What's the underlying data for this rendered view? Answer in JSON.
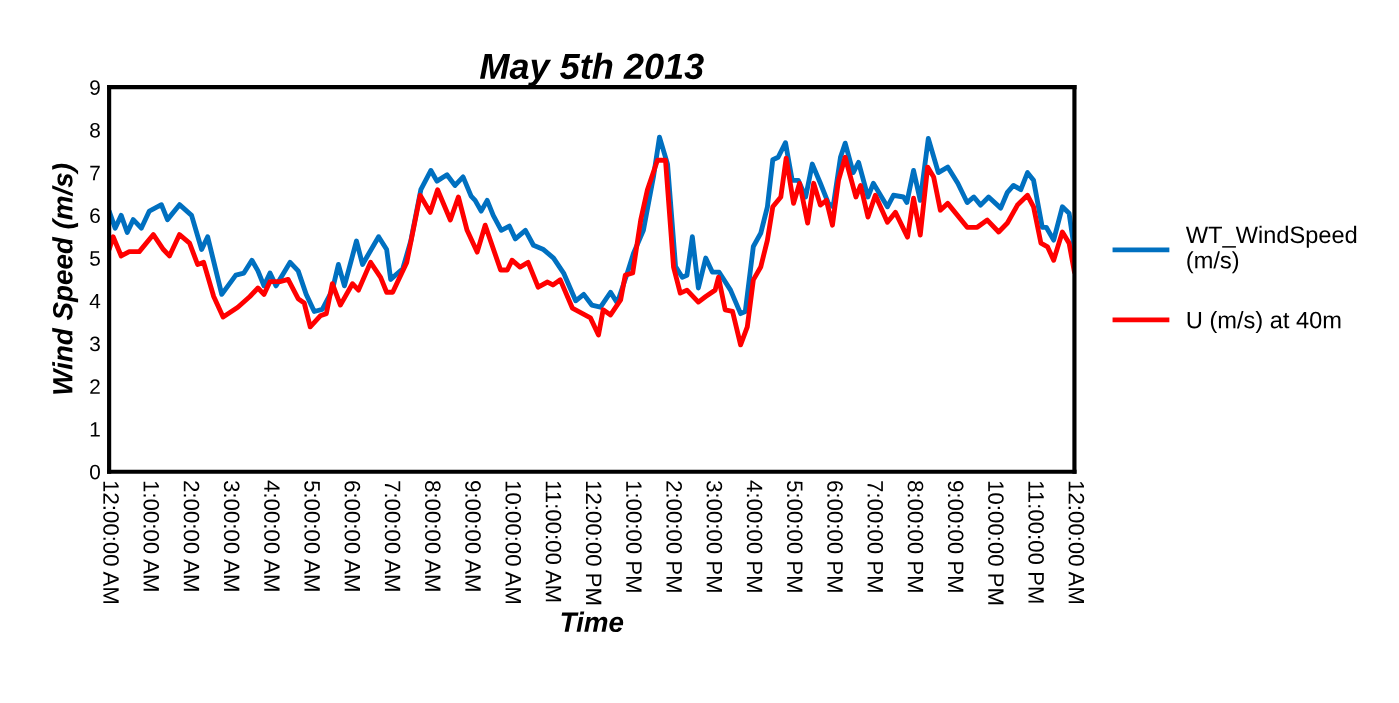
{
  "chart_data": {
    "type": "line",
    "title": "May 5th 2013",
    "xlabel": "Time",
    "ylabel": "Wind Speed (m/s)",
    "xlim": [
      "2013-05-05T00:00",
      "2013-05-06T00:00"
    ],
    "xticks": [
      {
        "value": "2013-05-05T00:00",
        "label": "12:00:00 AM"
      },
      {
        "value": "2013-05-05T01:00",
        "label": "1:00:00 AM"
      },
      {
        "value": "2013-05-05T02:00",
        "label": "2:00:00 AM"
      },
      {
        "value": "2013-05-05T03:00",
        "label": "3:00:00 AM"
      },
      {
        "value": "2013-05-05T04:00",
        "label": "4:00:00 AM"
      },
      {
        "value": "2013-05-05T05:00",
        "label": "5:00:00 AM"
      },
      {
        "value": "2013-05-05T06:00",
        "label": "6:00:00 AM"
      },
      {
        "value": "2013-05-05T07:00",
        "label": "7:00:00 AM"
      },
      {
        "value": "2013-05-05T08:00",
        "label": "8:00:00 AM"
      },
      {
        "value": "2013-05-05T09:00",
        "label": "9:00:00 AM"
      },
      {
        "value": "2013-05-05T10:00",
        "label": "10:00:00 AM"
      },
      {
        "value": "2013-05-05T11:00",
        "label": "11:00:00 AM"
      },
      {
        "value": "2013-05-05T12:00",
        "label": "12:00:00 PM"
      },
      {
        "value": "2013-05-05T13:00",
        "label": "1:00:00 PM"
      },
      {
        "value": "2013-05-05T14:00",
        "label": "2:00:00 PM"
      },
      {
        "value": "2013-05-05T15:00",
        "label": "3:00:00 PM"
      },
      {
        "value": "2013-05-05T16:00",
        "label": "4:00:00 PM"
      },
      {
        "value": "2013-05-05T17:00",
        "label": "5:00:00 PM"
      },
      {
        "value": "2013-05-05T18:00",
        "label": "6:00:00 PM"
      },
      {
        "value": "2013-05-05T19:00",
        "label": "7:00:00 PM"
      },
      {
        "value": "2013-05-05T20:00",
        "label": "8:00:00 PM"
      },
      {
        "value": "2013-05-05T21:00",
        "label": "9:00:00 PM"
      },
      {
        "value": "2013-05-05T22:00",
        "label": "10:00:00 PM"
      },
      {
        "value": "2013-05-05T23:00",
        "label": "11:00:00 PM"
      },
      {
        "value": "2013-05-06T00:00",
        "label": "12:00:00 AM"
      }
    ],
    "ylim": [
      0,
      9
    ],
    "yticks": [
      0,
      1,
      2,
      3,
      4,
      5,
      6,
      7,
      8,
      9
    ],
    "grid": false,
    "legend": "right",
    "marker": "none",
    "line_style": "solid",
    "series": [
      {
        "name": "WT_WindSpeed\n(m/s)",
        "color": "#0070c0",
        "x": [
          "2013-05-05T00:00",
          "2013-05-05T00:09",
          "2013-05-05T00:18",
          "2013-05-05T00:27",
          "2013-05-05T00:36",
          "2013-05-05T00:48",
          "2013-05-05T01:00",
          "2013-05-05T01:18",
          "2013-05-05T01:27",
          "2013-05-05T01:45",
          "2013-05-05T02:03",
          "2013-05-05T02:18",
          "2013-05-05T02:27",
          "2013-05-05T02:48",
          "2013-05-05T03:09",
          "2013-05-05T03:21",
          "2013-05-05T03:33",
          "2013-05-05T03:42",
          "2013-05-05T03:51",
          "2013-05-05T04:00",
          "2013-05-05T04:09",
          "2013-05-05T04:30",
          "2013-05-05T04:42",
          "2013-05-05T04:54",
          "2013-05-05T05:06",
          "2013-05-05T05:18",
          "2013-05-05T05:33",
          "2013-05-05T05:42",
          "2013-05-05T05:51",
          "2013-05-05T06:09",
          "2013-05-05T06:18",
          "2013-05-05T06:42",
          "2013-05-05T06:54",
          "2013-05-05T07:00",
          "2013-05-05T07:18",
          "2013-05-05T07:30",
          "2013-05-05T07:45",
          "2013-05-05T08:00",
          "2013-05-05T08:09",
          "2013-05-05T08:24",
          "2013-05-05T08:36",
          "2013-05-05T08:48",
          "2013-05-05T09:00",
          "2013-05-05T09:06",
          "2013-05-05T09:15",
          "2013-05-05T09:24",
          "2013-05-05T09:33",
          "2013-05-05T09:45",
          "2013-05-05T09:57",
          "2013-05-05T10:06",
          "2013-05-05T10:21",
          "2013-05-05T10:33",
          "2013-05-05T10:48",
          "2013-05-05T11:03",
          "2013-05-05T11:18",
          "2013-05-05T11:36",
          "2013-05-05T11:48",
          "2013-05-05T12:00",
          "2013-05-05T12:13",
          "2013-05-05T12:28",
          "2013-05-05T12:38",
          "2013-05-05T12:53",
          "2013-05-05T13:02",
          "2013-05-05T13:17",
          "2013-05-05T13:32",
          "2013-05-05T13:41",
          "2013-05-05T13:53",
          "2013-05-05T14:05",
          "2013-05-05T14:15",
          "2013-05-05T14:22",
          "2013-05-05T14:30",
          "2013-05-05T14:39",
          "2013-05-05T14:50",
          "2013-05-05T15:00",
          "2013-05-05T15:10",
          "2013-05-05T15:27",
          "2013-05-05T15:42",
          "2013-05-05T15:49",
          "2013-05-05T16:01",
          "2013-05-05T16:12",
          "2013-05-05T16:22",
          "2013-05-05T16:30",
          "2013-05-05T16:38",
          "2013-05-05T16:49",
          "2013-05-05T16:59",
          "2013-05-05T17:08",
          "2013-05-05T17:19",
          "2013-05-05T17:29",
          "2013-05-05T17:41",
          "2013-05-05T17:53",
          "2013-05-05T18:00",
          "2013-05-05T18:11",
          "2013-05-05T18:18",
          "2013-05-05T18:30",
          "2013-05-05T18:38",
          "2013-05-05T18:52",
          "2013-05-05T19:00",
          "2013-05-05T19:21",
          "2013-05-05T19:30",
          "2013-05-05T19:45",
          "2013-05-05T19:50",
          "2013-05-05T20:00",
          "2013-05-05T20:10",
          "2013-05-05T20:22",
          "2013-05-05T20:37",
          "2013-05-05T20:51",
          "2013-05-05T21:06",
          "2013-05-05T21:20",
          "2013-05-05T21:30",
          "2013-05-05T21:40",
          "2013-05-05T21:52",
          "2013-05-05T22:10",
          "2013-05-05T22:20",
          "2013-05-05T22:29",
          "2013-05-05T22:40",
          "2013-05-05T22:50",
          "2013-05-05T22:59",
          "2013-05-05T23:12",
          "2013-05-05T23:18",
          "2013-05-05T23:29",
          "2013-05-05T23:42",
          "2013-05-05T23:52",
          "2013-05-06T00:00"
        ],
        "values": [
          6.1,
          5.7,
          6.0,
          5.6,
          5.9,
          5.7,
          6.1,
          6.25,
          5.9,
          6.25,
          6.0,
          5.2,
          5.5,
          4.15,
          4.6,
          4.65,
          4.95,
          4.7,
          4.35,
          4.65,
          4.35,
          4.9,
          4.7,
          4.15,
          3.75,
          3.8,
          4.25,
          4.85,
          4.35,
          5.4,
          4.85,
          5.5,
          5.2,
          4.5,
          4.75,
          5.4,
          6.6,
          7.05,
          6.8,
          6.95,
          6.7,
          6.9,
          6.45,
          6.35,
          6.1,
          6.35,
          6.0,
          5.65,
          5.75,
          5.45,
          5.65,
          5.3,
          5.2,
          5.0,
          4.65,
          4.0,
          4.15,
          3.9,
          3.85,
          4.2,
          3.95,
          4.65,
          5.1,
          5.65,
          6.9,
          7.83,
          7.2,
          4.8,
          4.55,
          4.6,
          5.5,
          4.3,
          5.0,
          4.67,
          4.67,
          4.25,
          3.7,
          3.75,
          5.27,
          5.58,
          6.2,
          7.3,
          7.36,
          7.7,
          6.82,
          6.82,
          6.43,
          7.2,
          6.75,
          6.28,
          6.2,
          7.36,
          7.69,
          7.0,
          7.24,
          6.43,
          6.75,
          6.2,
          6.47,
          6.43,
          6.3,
          7.05,
          6.35,
          7.8,
          7.0,
          7.13,
          6.75,
          6.3,
          6.43,
          6.24,
          6.43,
          6.17,
          6.54,
          6.7,
          6.6,
          7.0,
          6.82,
          5.72,
          5.72,
          5.42,
          6.2,
          6.05,
          5.2
        ]
      },
      {
        "name": "U (m/s) at 40m",
        "color": "#ff0000",
        "x": [
          "2013-05-05T00:00",
          "2013-05-05T00:06",
          "2013-05-05T00:18",
          "2013-05-05T00:30",
          "2013-05-05T00:45",
          "2013-05-05T01:06",
          "2013-05-05T01:21",
          "2013-05-05T01:30",
          "2013-05-05T01:45",
          "2013-05-05T02:00",
          "2013-05-05T02:12",
          "2013-05-05T02:21",
          "2013-05-05T02:36",
          "2013-05-05T02:50",
          "2013-05-05T03:12",
          "2013-05-05T03:30",
          "2013-05-05T03:42",
          "2013-05-05T03:51",
          "2013-05-05T04:00",
          "2013-05-05T04:15",
          "2013-05-05T04:27",
          "2013-05-05T04:42",
          "2013-05-05T04:51",
          "2013-05-05T05:00",
          "2013-05-05T05:15",
          "2013-05-05T05:24",
          "2013-05-05T05:33",
          "2013-05-05T05:45",
          "2013-05-05T06:03",
          "2013-05-05T06:12",
          "2013-05-05T06:30",
          "2013-05-05T06:45",
          "2013-05-05T06:54",
          "2013-05-05T07:03",
          "2013-05-05T07:24",
          "2013-05-05T07:44",
          "2013-05-05T07:59",
          "2013-05-05T08:10",
          "2013-05-05T08:29",
          "2013-05-05T08:41",
          "2013-05-05T08:54",
          "2013-05-05T09:09",
          "2013-05-05T09:21",
          "2013-05-05T09:44",
          "2013-05-05T09:54",
          "2013-05-05T10:01",
          "2013-05-05T10:13",
          "2013-05-05T10:25",
          "2013-05-05T10:40",
          "2013-05-05T10:54",
          "2013-05-05T11:02",
          "2013-05-05T11:13",
          "2013-05-05T11:31",
          "2013-05-05T11:58",
          "2013-05-05T12:10",
          "2013-05-05T12:17",
          "2013-05-05T12:28",
          "2013-05-05T12:43",
          "2013-05-05T12:50",
          "2013-05-05T13:01",
          "2013-05-05T13:13",
          "2013-05-05T13:23",
          "2013-05-05T13:38",
          "2013-05-05T13:50",
          "2013-05-05T14:02",
          "2013-05-05T14:12",
          "2013-05-05T14:22",
          "2013-05-05T14:39",
          "2013-05-05T14:50",
          "2013-05-05T15:04",
          "2013-05-05T15:09",
          "2013-05-05T15:19",
          "2013-05-05T15:30",
          "2013-05-05T15:42",
          "2013-05-05T15:52",
          "2013-05-05T16:01",
          "2013-05-05T16:12",
          "2013-05-05T16:22",
          "2013-05-05T16:30",
          "2013-05-05T16:42",
          "2013-05-05T16:50",
          "2013-05-05T17:01",
          "2013-05-05T17:10",
          "2013-05-05T17:22",
          "2013-05-05T17:31",
          "2013-05-05T17:41",
          "2013-05-05T17:50",
          "2013-05-05T17:59",
          "2013-05-05T18:08",
          "2013-05-05T18:18",
          "2013-05-05T18:34",
          "2013-05-05T18:41",
          "2013-05-05T18:52",
          "2013-05-05T19:03",
          "2013-05-05T19:21",
          "2013-05-05T19:33",
          "2013-05-05T19:51",
          "2013-05-05T20:00",
          "2013-05-05T20:10",
          "2013-05-05T20:21",
          "2013-05-05T20:30",
          "2013-05-05T20:40",
          "2013-05-05T20:51",
          "2013-05-05T21:20",
          "2013-05-05T21:35",
          "2013-05-05T21:50",
          "2013-05-05T22:07",
          "2013-05-05T22:20",
          "2013-05-05T22:35",
          "2013-05-05T22:50",
          "2013-05-05T22:59",
          "2013-05-05T23:10",
          "2013-05-05T23:20",
          "2013-05-05T23:29",
          "2013-05-05T23:42",
          "2013-05-05T23:52",
          "2013-05-06T00:00"
        ],
        "values": [
          5.2,
          5.5,
          5.05,
          5.15,
          5.15,
          5.55,
          5.2,
          5.05,
          5.55,
          5.35,
          4.85,
          4.9,
          4.1,
          3.62,
          3.85,
          4.1,
          4.3,
          4.15,
          4.45,
          4.45,
          4.5,
          4.05,
          3.95,
          3.39,
          3.65,
          3.7,
          4.4,
          3.9,
          4.4,
          4.25,
          4.9,
          4.55,
          4.2,
          4.2,
          4.9,
          6.47,
          6.07,
          6.6,
          5.89,
          6.43,
          5.65,
          5.14,
          5.77,
          4.72,
          4.72,
          4.95,
          4.79,
          4.9,
          4.32,
          4.44,
          4.37,
          4.49,
          3.83,
          3.6,
          3.2,
          3.79,
          3.67,
          4.02,
          4.6,
          4.65,
          5.89,
          6.6,
          7.29,
          7.29,
          4.79,
          4.18,
          4.25,
          3.97,
          4.1,
          4.25,
          4.55,
          3.79,
          3.75,
          2.97,
          3.39,
          4.49,
          4.79,
          5.42,
          6.2,
          6.43,
          7.34,
          6.28,
          6.75,
          5.82,
          6.75,
          6.24,
          6.35,
          5.77,
          6.82,
          7.36,
          6.43,
          6.7,
          5.96,
          6.47,
          5.84,
          6.07,
          5.49,
          6.4,
          5.54,
          7.13,
          6.9,
          6.12,
          6.28,
          5.72,
          5.72,
          5.89,
          5.61,
          5.82,
          6.24,
          6.47,
          6.2,
          5.35,
          5.26,
          4.95,
          5.61,
          5.35,
          4.67
        ]
      }
    ]
  }
}
